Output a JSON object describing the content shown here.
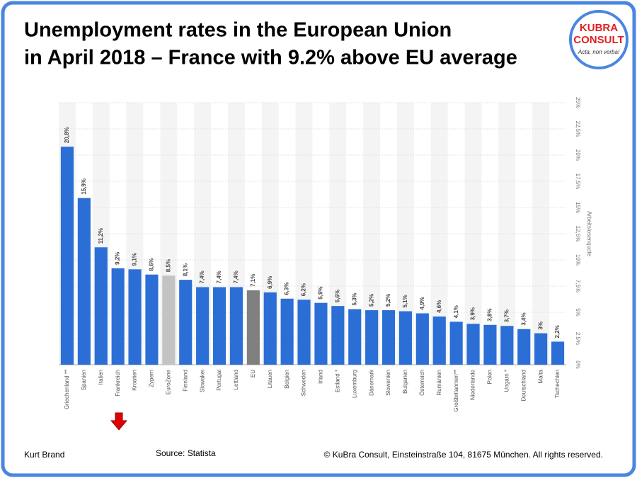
{
  "slide": {
    "title": [
      "Unemployment rates in the European Union",
      "in April 2018 – France with 9.2% above EU average"
    ],
    "logo": {
      "line1": "KUBRA",
      "line2": "CONSULT",
      "motto": "Acta, non verba!"
    },
    "footer": {
      "author": "Kurt Brand",
      "source": "Source: Statista",
      "copyright": "© KuBra Consult, Einsteinstraße 104, 81675 München. All rights reserved."
    }
  },
  "chart_data": {
    "type": "bar",
    "y_label": "Arbeitslosenquote",
    "categories": [
      "Griechenland **",
      "Spanien",
      "Italien",
      "Frankreich",
      "Kroatien",
      "Zypern",
      "EuroZone",
      "Finnland",
      "Slowakei",
      "Portugal",
      "Lettland",
      "EU",
      "Litauen",
      "Belgien",
      "Schweden",
      "Irland",
      "Estland *",
      "Luxemburg",
      "Dänemark",
      "Slowenien",
      "Bulgarien",
      "Österreich",
      "Rumänien",
      "Großbritannien**",
      "Niederlande",
      "Polen",
      "Ungarn *",
      "Deutschland",
      "Malta",
      "Tschechien"
    ],
    "values": [
      20.8,
      15.9,
      11.2,
      9.2,
      9.1,
      8.6,
      8.5,
      8.1,
      7.4,
      7.4,
      7.4,
      7.1,
      6.9,
      6.3,
      6.2,
      5.9,
      5.6,
      5.3,
      5.2,
      5.2,
      5.1,
      4.9,
      4.6,
      4.1,
      3.9,
      3.8,
      3.7,
      3.4,
      3,
      2.2
    ],
    "value_labels": [
      "20,8%",
      "15,9%",
      "11,2%",
      "9,2%",
      "9,1%",
      "8,6%",
      "8,5%",
      "8,1%",
      "7,4%",
      "7,4%",
      "7,4%",
      "7,1%",
      "6,9%",
      "6,3%",
      "6,2%",
      "5,9%",
      "5,6%",
      "5,3%",
      "5,2%",
      "5,2%",
      "5,1%",
      "4,9%",
      "4,6%",
      "4,1%",
      "3,9%",
      "3,8%",
      "3,7%",
      "3,4%",
      "3%",
      "2,2%"
    ],
    "colors": [
      "#2b6fd6",
      "#2b6fd6",
      "#2b6fd6",
      "#2b6fd6",
      "#2b6fd6",
      "#2b6fd6",
      "#c3c3c3",
      "#2b6fd6",
      "#2b6fd6",
      "#2b6fd6",
      "#2b6fd6",
      "#808080",
      "#2b6fd6",
      "#2b6fd6",
      "#2b6fd6",
      "#2b6fd6",
      "#2b6fd6",
      "#2b6fd6",
      "#2b6fd6",
      "#2b6fd6",
      "#2b6fd6",
      "#2b6fd6",
      "#2b6fd6",
      "#2b6fd6",
      "#2b6fd6",
      "#2b6fd6",
      "#2b6fd6",
      "#2b6fd6",
      "#2b6fd6",
      "#2b6fd6"
    ],
    "ylim": [
      0,
      25
    ],
    "yticks": [
      {
        "value": 0,
        "label": "0%"
      },
      {
        "value": 2.5,
        "label": "2,5%"
      },
      {
        "value": 5,
        "label": "5%"
      },
      {
        "value": 7.5,
        "label": "7,5%"
      },
      {
        "value": 10,
        "label": "10%"
      },
      {
        "value": 12.5,
        "label": "12,5%"
      },
      {
        "value": 15,
        "label": "15%"
      },
      {
        "value": 17.5,
        "label": "17,5%"
      },
      {
        "value": 20,
        "label": "20%"
      },
      {
        "value": 22.5,
        "label": "22,5%"
      },
      {
        "value": 25,
        "label": "25%"
      }
    ],
    "grid": true
  }
}
